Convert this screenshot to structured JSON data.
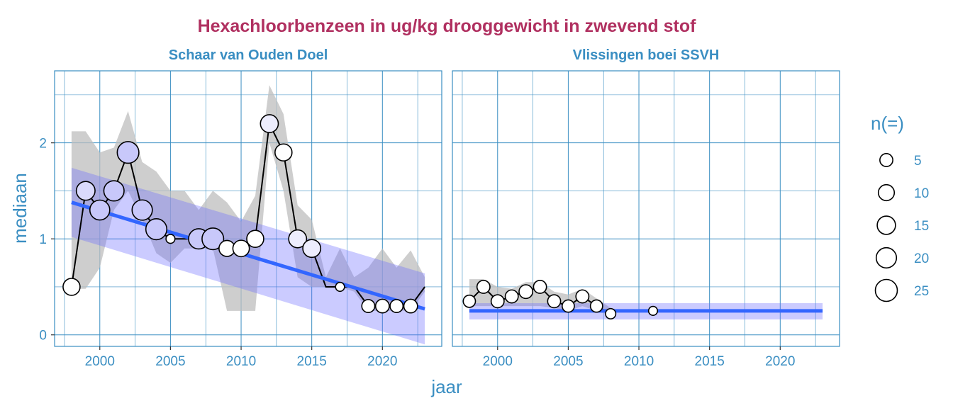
{
  "colors": {
    "title": "#B03060",
    "text": "#3A8EC2",
    "grid": "#3A8EC2",
    "ribbon": "#BEBEBE",
    "trend": "#3366FF",
    "trend_band": "#6B6BFF",
    "point_fill_low": "#FFFFFF",
    "point_fill_high": "#C8C8FA"
  },
  "chart_data": {
    "type": "scatter",
    "title": "Hexachloorbenzeen in ug/kg drooggewicht in zwevend stof",
    "xlabel": "jaar",
    "ylabel": "mediaan",
    "xlim": [
      1996.8,
      2024.2
    ],
    "ylim": [
      -0.12,
      2.75
    ],
    "x_ticks": [
      2000,
      2005,
      2010,
      2015,
      2020
    ],
    "x_tick_labels": [
      "2000",
      "2005",
      "2010",
      "2015",
      "2020"
    ],
    "y_ticks": [
      0,
      1,
      2
    ],
    "y_tick_labels": [
      "0",
      "1",
      "2"
    ],
    "legend": {
      "title": "n(=)",
      "position": "right",
      "sizes": [
        5,
        10,
        15,
        20,
        25
      ],
      "labels": [
        "5",
        "10",
        "15",
        "20",
        "25"
      ]
    },
    "panels": [
      {
        "strip": "Schaar van Ouden Doel",
        "series": [
          {
            "name": "mediaan",
            "points": [
              {
                "x": 1998,
                "y": 0.5,
                "n": 12
              },
              {
                "x": 1999,
                "y": 1.5,
                "n": 16
              },
              {
                "x": 2000,
                "y": 1.3,
                "n": 19
              },
              {
                "x": 2001,
                "y": 1.5,
                "n": 20
              },
              {
                "x": 2002,
                "y": 1.9,
                "n": 24
              },
              {
                "x": 2003,
                "y": 1.3,
                "n": 20
              },
              {
                "x": 2004,
                "y": 1.1,
                "n": 22
              },
              {
                "x": 2005,
                "y": 1.0,
                "n": 1
              },
              {
                "x": 2007,
                "y": 1.0,
                "n": 20
              },
              {
                "x": 2008,
                "y": 1.0,
                "n": 24
              },
              {
                "x": 2009,
                "y": 0.9,
                "n": 10
              },
              {
                "x": 2010,
                "y": 0.9,
                "n": 11
              },
              {
                "x": 2011,
                "y": 1.0,
                "n": 12
              },
              {
                "x": 2012,
                "y": 2.2,
                "n": 14
              },
              {
                "x": 2013,
                "y": 1.9,
                "n": 12
              },
              {
                "x": 2014,
                "y": 1.0,
                "n": 14
              },
              {
                "x": 2015,
                "y": 0.9,
                "n": 14
              },
              {
                "x": 2017,
                "y": 0.5,
                "n": 1
              },
              {
                "x": 2019,
                "y": 0.3,
                "n": 5
              },
              {
                "x": 2020,
                "y": 0.3,
                "n": 6
              },
              {
                "x": 2021,
                "y": 0.3,
                "n": 5
              },
              {
                "x": 2022,
                "y": 0.3,
                "n": 6
              }
            ],
            "line_x": [
              1998,
              1999,
              2000,
              2001,
              2002,
              2003,
              2004,
              2005,
              2007,
              2008,
              2009,
              2010,
              2011,
              2012,
              2013,
              2014,
              2015,
              2016,
              2017,
              2018,
              2019,
              2020,
              2021,
              2022,
              2023
            ],
            "line_y": [
              0.5,
              1.5,
              1.3,
              1.5,
              1.9,
              1.3,
              1.1,
              1.0,
              1.0,
              1.0,
              0.9,
              0.9,
              1.0,
              2.2,
              1.9,
              1.0,
              0.9,
              0.5,
              0.5,
              0.5,
              0.3,
              0.3,
              0.3,
              0.3,
              0.5
            ]
          }
        ],
        "range_band": {
          "x": [
            1998,
            1999,
            2000,
            2001,
            2002,
            2003,
            2004,
            2005,
            2006,
            2007,
            2008,
            2009,
            2010,
            2011,
            2012,
            2013,
            2014,
            2015,
            2016,
            2017,
            2018,
            2019,
            2020,
            2021,
            2022,
            2023
          ],
          "upper": [
            2.12,
            2.12,
            1.9,
            1.95,
            2.33,
            1.8,
            1.7,
            1.5,
            1.5,
            1.3,
            1.5,
            1.38,
            1.18,
            1.45,
            2.6,
            2.3,
            1.35,
            1.2,
            0.6,
            0.9,
            0.6,
            0.7,
            0.9,
            0.7,
            0.88,
            0.6
          ],
          "lower": [
            0.48,
            0.48,
            0.7,
            1.3,
            1.5,
            1.2,
            0.85,
            0.75,
            0.9,
            0.9,
            0.9,
            0.25,
            0.25,
            0.25,
            2.0,
            1.5,
            0.6,
            0.5,
            0.5,
            0.5,
            0.45,
            0.25,
            0.25,
            0.25,
            0.25,
            0.45
          ]
        },
        "trend": {
          "x": [
            1998,
            2023
          ],
          "y": [
            1.38,
            0.27
          ]
        },
        "trend_band": {
          "x": [
            1998,
            2023
          ],
          "upper": [
            1.74,
            0.64
          ],
          "lower": [
            1.02,
            -0.1
          ]
        }
      },
      {
        "strip": "Vlissingen boei SSVH",
        "series": [
          {
            "name": "mediaan",
            "points": [
              {
                "x": 1998,
                "y": 0.35,
                "n": 4
              },
              {
                "x": 1999,
                "y": 0.5,
                "n": 5
              },
              {
                "x": 2000,
                "y": 0.35,
                "n": 5
              },
              {
                "x": 2001,
                "y": 0.4,
                "n": 5
              },
              {
                "x": 2002,
                "y": 0.45,
                "n": 6
              },
              {
                "x": 2003,
                "y": 0.5,
                "n": 5
              },
              {
                "x": 2004,
                "y": 0.35,
                "n": 5
              },
              {
                "x": 2005,
                "y": 0.3,
                "n": 4
              },
              {
                "x": 2006,
                "y": 0.4,
                "n": 5
              },
              {
                "x": 2007,
                "y": 0.3,
                "n": 4
              },
              {
                "x": 2008,
                "y": 0.22,
                "n": 2
              },
              {
                "x": 2011,
                "y": 0.25,
                "n": 1
              }
            ],
            "line_x": [
              1998,
              1999,
              2000,
              2001,
              2002,
              2003,
              2004,
              2005,
              2006,
              2007,
              2008
            ],
            "line_y": [
              0.35,
              0.5,
              0.35,
              0.4,
              0.45,
              0.5,
              0.35,
              0.3,
              0.4,
              0.3,
              0.22
            ]
          }
        ],
        "range_band": {
          "x": [
            1998,
            1999,
            2000,
            2001,
            2002,
            2003,
            2004,
            2005,
            2006,
            2007,
            2008
          ],
          "upper": [
            0.58,
            0.58,
            0.5,
            0.48,
            0.55,
            0.55,
            0.45,
            0.42,
            0.48,
            0.38,
            0.28
          ],
          "lower": [
            0.3,
            0.3,
            0.3,
            0.3,
            0.3,
            0.3,
            0.28,
            0.25,
            0.3,
            0.25,
            0.2
          ]
        },
        "trend": {
          "x": [
            1998,
            2023
          ],
          "y": [
            0.25,
            0.25
          ]
        },
        "trend_band": {
          "x": [
            1998,
            2023
          ],
          "upper": [
            0.33,
            0.33
          ],
          "lower": [
            0.16,
            0.16
          ]
        }
      }
    ]
  }
}
